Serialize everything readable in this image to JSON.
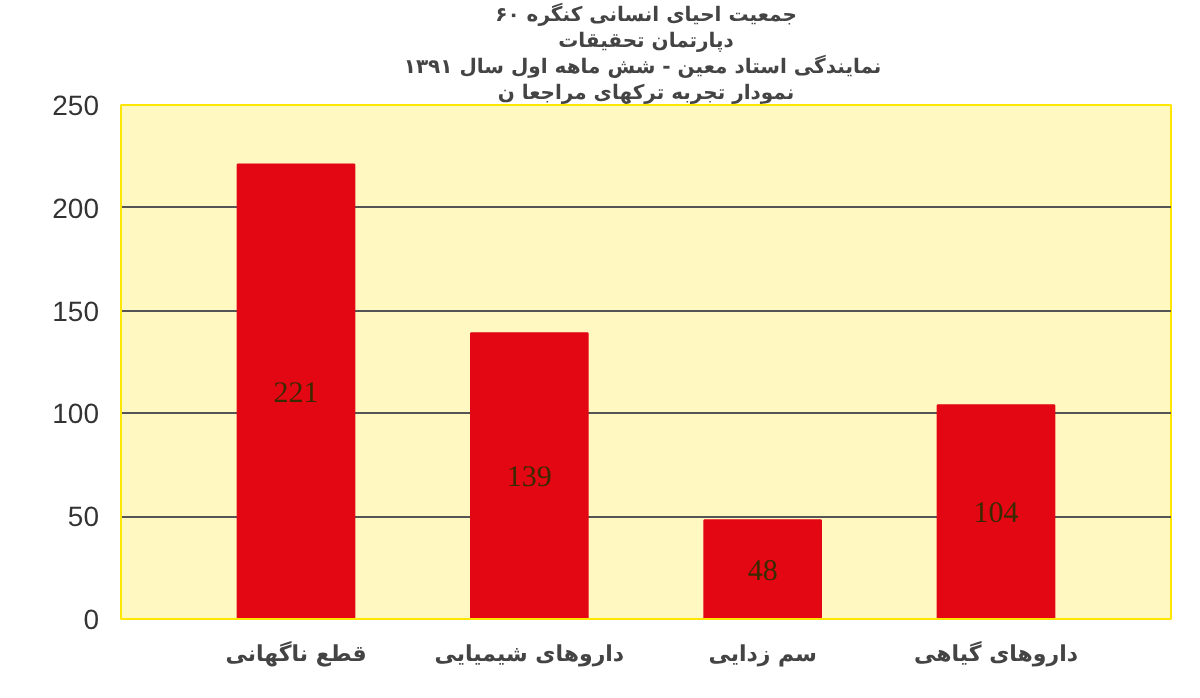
{
  "chart_data": {
    "type": "bar",
    "title": "جمعیت احیای انسانی کنگره ۶۰",
    "subtitle": [
      "دپارتمان تحقیقات",
      "نمایندگی استاد معین  - شش ماهه اول سال ۱۳۹۱",
      "نمودار تجربه ترکهای مراجعا ن"
    ],
    "categories": [
      "قطع ناگهانی",
      "داروهای شیمیایی",
      "سم زدایی",
      "داروهای گیاهی"
    ],
    "values": [
      221,
      139,
      48,
      104
    ],
    "color": "#e30613",
    "ylim": [
      0,
      250
    ],
    "yticks": [
      0,
      50,
      100,
      150,
      200,
      250
    ],
    "grid": "y",
    "data_labels": true
  }
}
